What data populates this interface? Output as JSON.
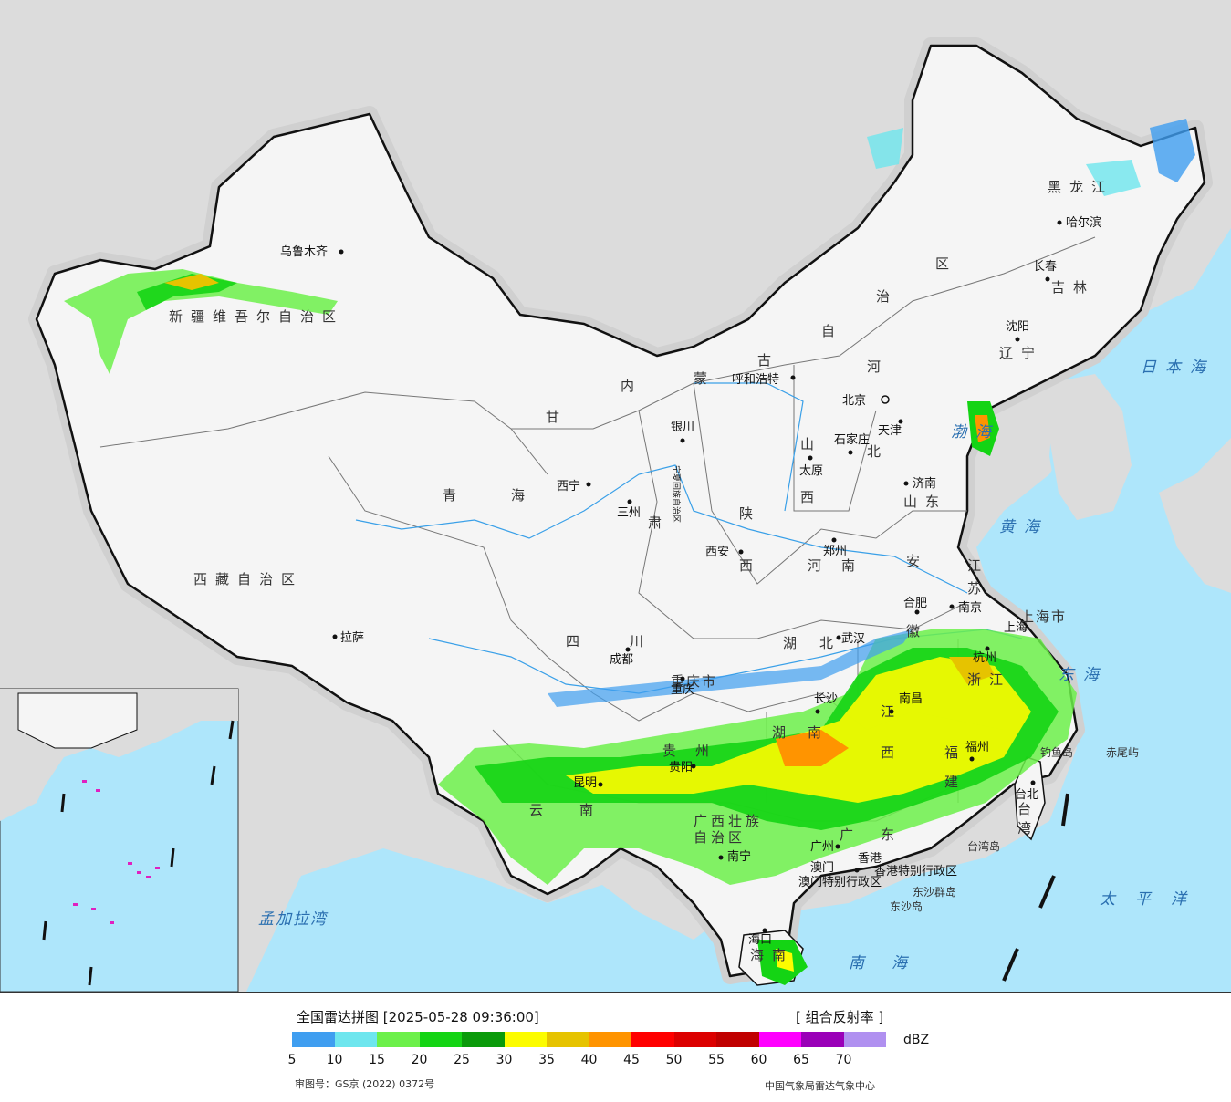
{
  "map": {
    "provinces": [
      {
        "id": "xinjiang",
        "label": "新疆维吾尔自治区"
      },
      {
        "id": "xizang",
        "label": "西藏自治区"
      },
      {
        "id": "qinghai",
        "label": "青海"
      },
      {
        "id": "gansu",
        "label": "甘"
      },
      {
        "id": "gansu2",
        "label": "肃"
      },
      {
        "id": "neimeng1",
        "label": "内"
      },
      {
        "id": "neimeng2",
        "label": "蒙"
      },
      {
        "id": "neimeng3",
        "label": "古"
      },
      {
        "id": "neimeng4",
        "label": "自"
      },
      {
        "id": "neimeng5",
        "label": "治"
      },
      {
        "id": "neimeng6",
        "label": "区"
      },
      {
        "id": "heilongjiang",
        "label": "黑龙江"
      },
      {
        "id": "jilin",
        "label": "吉林"
      },
      {
        "id": "liaoning",
        "label": "辽宁"
      },
      {
        "id": "hebei1",
        "label": "河"
      },
      {
        "id": "hebei2",
        "label": "北"
      },
      {
        "id": "shanxi1",
        "label": "山"
      },
      {
        "id": "shanxi2",
        "label": "西"
      },
      {
        "id": "shandong",
        "label": "山东"
      },
      {
        "id": "shaanxi1",
        "label": "陕"
      },
      {
        "id": "shaanxi2",
        "label": "西"
      },
      {
        "id": "henan",
        "label": "河南"
      },
      {
        "id": "jiangsu1",
        "label": "江"
      },
      {
        "id": "jiangsu2",
        "label": "苏"
      },
      {
        "id": "anhui1",
        "label": "安"
      },
      {
        "id": "anhui2",
        "label": "徽"
      },
      {
        "id": "sichuan",
        "label": "四川"
      },
      {
        "id": "hubei",
        "label": "湖北"
      },
      {
        "id": "zhejiang",
        "label": "浙江"
      },
      {
        "id": "jiangxi1",
        "label": "江"
      },
      {
        "id": "jiangxi2",
        "label": "西"
      },
      {
        "id": "hunan1",
        "label": "湖"
      },
      {
        "id": "hunan2",
        "label": "南"
      },
      {
        "id": "guizhou1",
        "label": "贵"
      },
      {
        "id": "guizhou2",
        "label": "州"
      },
      {
        "id": "yunnan",
        "label": "云南"
      },
      {
        "id": "guangxi1",
        "label": "广西壮族"
      },
      {
        "id": "guangxi2",
        "label": "自治区"
      },
      {
        "id": "guangdong",
        "label": "广东"
      },
      {
        "id": "fujian1",
        "label": "福"
      },
      {
        "id": "fujian2",
        "label": "建"
      },
      {
        "id": "taiwan1",
        "label": "台"
      },
      {
        "id": "taiwan2",
        "label": "湾"
      },
      {
        "id": "hainan",
        "label": "海南"
      },
      {
        "id": "ningxia",
        "label": "宁夏回族自治区"
      },
      {
        "id": "chongqing",
        "label": "重庆市"
      },
      {
        "id": "shanghai",
        "label": "上海市"
      },
      {
        "id": "xianggang",
        "label": "香港特别行政区"
      },
      {
        "id": "aomen",
        "label": "澳门特别行政区"
      }
    ],
    "cities": [
      {
        "id": "urumqi",
        "label": "乌鲁木齐"
      },
      {
        "id": "lhasa",
        "label": "拉萨"
      },
      {
        "id": "xining",
        "label": "西宁"
      },
      {
        "id": "lanzhou",
        "label": "三州"
      },
      {
        "id": "yinchuan",
        "label": "银川"
      },
      {
        "id": "hohhot",
        "label": "呼和浩特"
      },
      {
        "id": "beijing",
        "label": "北京"
      },
      {
        "id": "tianjin",
        "label": "天津"
      },
      {
        "id": "shijiazhuang",
        "label": "石家庄"
      },
      {
        "id": "taiyuan",
        "label": "太原"
      },
      {
        "id": "jinan",
        "label": "济南"
      },
      {
        "id": "xian",
        "label": "西安"
      },
      {
        "id": "zhengzhou",
        "label": "郑州"
      },
      {
        "id": "hefei",
        "label": "合肥"
      },
      {
        "id": "nanjing",
        "label": "南京"
      },
      {
        "id": "shanghai_c",
        "label": "上海"
      },
      {
        "id": "hangzhou",
        "label": "杭州"
      },
      {
        "id": "wuhan",
        "label": "武汉"
      },
      {
        "id": "chengdu",
        "label": "成都"
      },
      {
        "id": "chongqing_c",
        "label": "重庆"
      },
      {
        "id": "changsha",
        "label": "长沙"
      },
      {
        "id": "nanchang",
        "label": "南昌"
      },
      {
        "id": "guiyang",
        "label": "贵阳"
      },
      {
        "id": "kunming",
        "label": "昆明"
      },
      {
        "id": "fuzhou",
        "label": "福州"
      },
      {
        "id": "taibei",
        "label": "台北"
      },
      {
        "id": "nanning",
        "label": "南宁"
      },
      {
        "id": "guangzhou",
        "label": "广州"
      },
      {
        "id": "xianggang_c",
        "label": "香港"
      },
      {
        "id": "aomen_c",
        "label": "澳门"
      },
      {
        "id": "haikou",
        "label": "海口"
      },
      {
        "id": "shenyang",
        "label": "沈阳"
      },
      {
        "id": "changchun",
        "label": "长春"
      },
      {
        "id": "haerbin",
        "label": "哈尔滨"
      }
    ],
    "seas": [
      {
        "id": "bohai",
        "label": "渤海"
      },
      {
        "id": "huanghai",
        "label": "黄海"
      },
      {
        "id": "donghai",
        "label": "东海"
      },
      {
        "id": "nanhai",
        "label": "南海"
      },
      {
        "id": "ribenhai",
        "label": "日本海"
      },
      {
        "id": "taipingyang",
        "label": "太平洋"
      },
      {
        "id": "mengjialawan",
        "label": "孟加拉湾"
      }
    ],
    "islands": [
      {
        "id": "diaoyudao",
        "label": "钓鱼岛"
      },
      {
        "id": "chiweiyu",
        "label": "赤尾屿"
      },
      {
        "id": "dongshadao",
        "label": "东沙岛"
      },
      {
        "id": "dongshaqundao",
        "label": "东沙群岛"
      },
      {
        "id": "taiwandao",
        "label": "台湾岛"
      }
    ]
  },
  "legend": {
    "title": "全国雷达拼图 [2025-05-28 09:36:00]",
    "product": "[ 组合反射率 ]",
    "unit": "dBZ",
    "colors": [
      "#3f9ef0",
      "#6ee6ee",
      "#6cf04a",
      "#14d414",
      "#0a9a0a",
      "#fcfc00",
      "#e6c300",
      "#ff9400",
      "#ff0000",
      "#dc0000",
      "#c00000",
      "#ff00ff",
      "#9a00b8",
      "#b090f0"
    ],
    "ticks": [
      "5",
      "10",
      "15",
      "20",
      "25",
      "30",
      "35",
      "40",
      "45",
      "50",
      "55",
      "60",
      "65",
      "70"
    ],
    "review_no": "审图号：GS京 (2022) 0372号",
    "source": "中国气象局雷达气象中心"
  },
  "colors": {
    "ocean": "#aee6fb",
    "land_outside": "#d9d9d9",
    "land_china": "#f4f4f4"
  }
}
